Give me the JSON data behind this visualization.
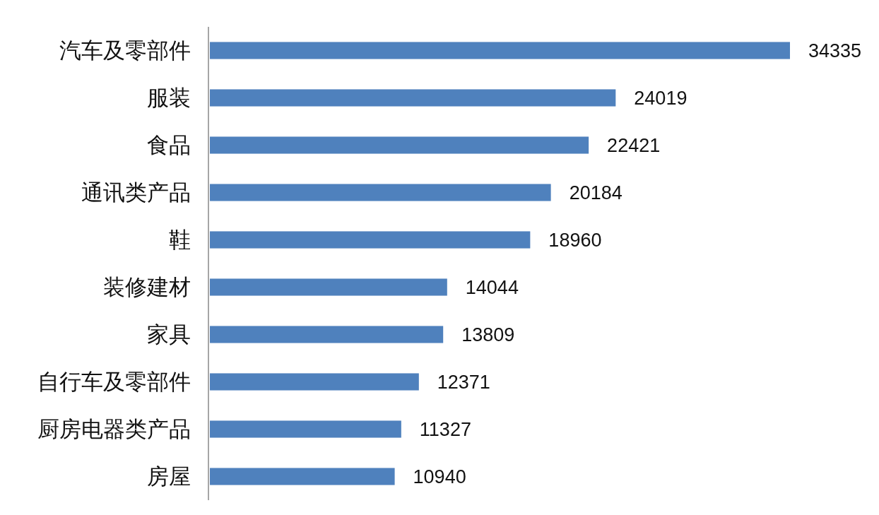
{
  "chart_data": {
    "type": "bar",
    "orientation": "horizontal",
    "categories": [
      "汽车及零部件",
      "服装",
      "食品",
      "通讯类产品",
      "鞋",
      "装修建材",
      "家具",
      "自行车及零部件",
      "厨房电器类产品",
      "房屋"
    ],
    "values": [
      34335,
      24019,
      22421,
      20184,
      18960,
      14044,
      13809,
      12371,
      11327,
      10940
    ],
    "color": "#4f81bd",
    "data_labels": true
  }
}
